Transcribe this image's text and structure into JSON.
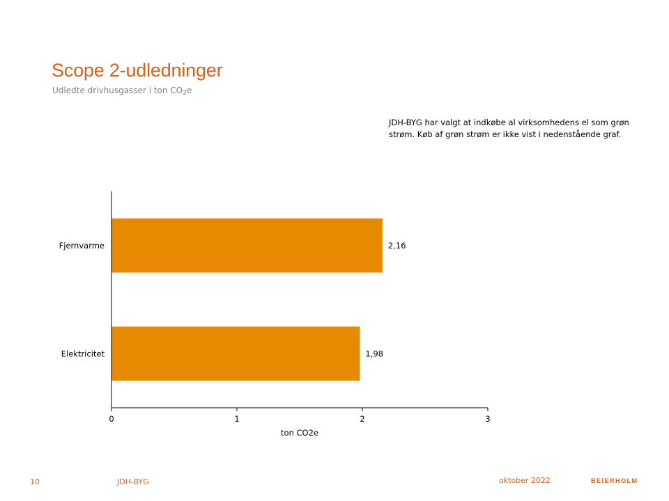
{
  "header": {
    "title": "Scope 2-udledninger",
    "subtitle_main": "Udledte drivhusgasser  i ton CO",
    "subtitle_sub": "2",
    "subtitle_end": "e"
  },
  "note": "JDH-BYG  har valgt at indkøbe al virksomhedens el som grøn strøm. Køb af grøn strøm er ikke vist i nedenstående graf.",
  "colors": {
    "accent": "#d9601b",
    "bar": "#e88a00",
    "axis": "#000000"
  },
  "chart_data": {
    "type": "bar",
    "orientation": "horizontal",
    "categories": [
      "Fjernvarme",
      "Elektricitet"
    ],
    "values": [
      2.16,
      1.98
    ],
    "value_labels": [
      "2,16",
      "1,98"
    ],
    "xlabel": "ton CO2e",
    "xlim": [
      0,
      3
    ],
    "xticks": [
      "0",
      "1",
      "2",
      "3"
    ],
    "grid": false,
    "legend": "none"
  },
  "footer": {
    "page": "10",
    "client": "JDH-BYG",
    "date": "oktober 2022",
    "logo": "BEIERHOLM"
  }
}
